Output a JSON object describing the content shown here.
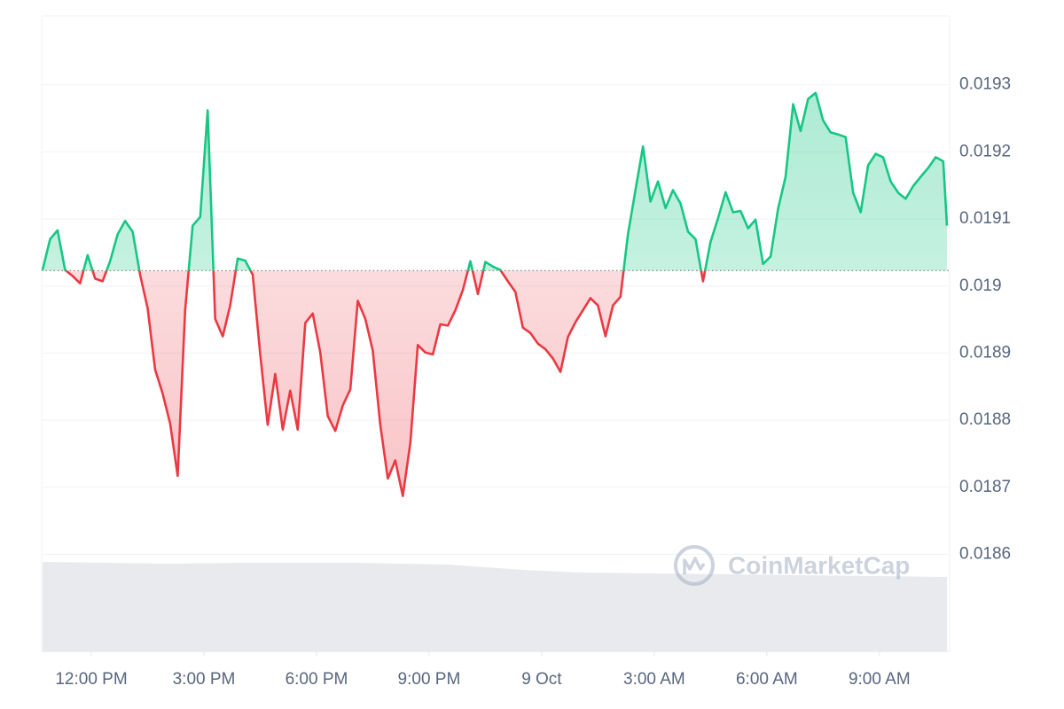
{
  "chart_data": {
    "type": "line",
    "up_color": "#16c784",
    "down_color": "#ea3943",
    "baseline": 0.019023,
    "xlim": [
      -1.3,
      22.9
    ],
    "ylim": [
      0.01845,
      0.0194
    ],
    "grid": true,
    "yticks": [
      0.0186,
      0.0187,
      0.0188,
      0.0189,
      0.019,
      0.0191,
      0.0192,
      0.0193
    ],
    "xticks": [
      {
        "value": 0,
        "label": "12:00 PM"
      },
      {
        "value": 3,
        "label": "3:00 PM"
      },
      {
        "value": 6,
        "label": "6:00 PM"
      },
      {
        "value": 9,
        "label": "9:00 PM"
      },
      {
        "value": 12,
        "label": "9 Oct"
      },
      {
        "value": 15,
        "label": "3:00 AM"
      },
      {
        "value": 18,
        "label": "6:00 AM"
      },
      {
        "value": 21,
        "label": "9:00 AM"
      }
    ],
    "x": [
      -1.3,
      -1.1,
      -0.9,
      -0.7,
      -0.5,
      -0.3,
      -0.1,
      0.1,
      0.3,
      0.5,
      0.7,
      0.9,
      1.1,
      1.3,
      1.5,
      1.7,
      1.9,
      2.1,
      2.3,
      2.5,
      2.7,
      2.9,
      3.1,
      3.3,
      3.5,
      3.7,
      3.9,
      4.1,
      4.3,
      4.5,
      4.7,
      4.9,
      5.1,
      5.3,
      5.5,
      5.7,
      5.9,
      6.1,
      6.3,
      6.5,
      6.7,
      6.9,
      7.1,
      7.3,
      7.5,
      7.7,
      7.9,
      8.1,
      8.3,
      8.5,
      8.7,
      8.9,
      9.1,
      9.3,
      9.5,
      9.7,
      9.9,
      10.1,
      10.3,
      10.5,
      10.7,
      10.9,
      11.1,
      11.3,
      11.5,
      11.7,
      11.9,
      12.1,
      12.3,
      12.5,
      12.7,
      12.9,
      13.1,
      13.3,
      13.5,
      13.7,
      13.9,
      14.1,
      14.3,
      14.5,
      14.7,
      14.9,
      15.1,
      15.3,
      15.5,
      15.7,
      15.9,
      16.1,
      16.3,
      16.5,
      16.7,
      16.9,
      17.1,
      17.3,
      17.5,
      17.7,
      17.9,
      18.1,
      18.3,
      18.5,
      18.7,
      18.9,
      19.1,
      19.3,
      19.5,
      19.7,
      19.9,
      20.1,
      20.3,
      20.5,
      20.7,
      20.9,
      21.1,
      21.3,
      21.5,
      21.7,
      21.9,
      22.1,
      22.3,
      22.5,
      22.7,
      22.8
    ],
    "values": [
      0.019024,
      0.01907,
      0.019083,
      0.019024,
      0.019015,
      0.019004,
      0.019046,
      0.019011,
      0.019007,
      0.019037,
      0.019077,
      0.019097,
      0.019081,
      0.019017,
      0.018967,
      0.018875,
      0.01884,
      0.018795,
      0.018717,
      0.018964,
      0.01909,
      0.019103,
      0.019262,
      0.018951,
      0.018925,
      0.018971,
      0.019041,
      0.019038,
      0.019017,
      0.018898,
      0.018793,
      0.018869,
      0.018786,
      0.018844,
      0.018786,
      0.018945,
      0.018959,
      0.018901,
      0.018806,
      0.018784,
      0.018822,
      0.018846,
      0.018978,
      0.018951,
      0.018904,
      0.018793,
      0.018713,
      0.01874,
      0.018687,
      0.018766,
      0.018912,
      0.018901,
      0.018898,
      0.018943,
      0.018941,
      0.018964,
      0.018994,
      0.019037,
      0.018988,
      0.019036,
      0.019029,
      0.019024,
      0.019007,
      0.018991,
      0.018938,
      0.01893,
      0.018914,
      0.018906,
      0.018892,
      0.018872,
      0.018924,
      0.018946,
      0.018964,
      0.018982,
      0.018971,
      0.018925,
      0.018971,
      0.018984,
      0.019077,
      0.019143,
      0.019208,
      0.019126,
      0.019156,
      0.019116,
      0.019143,
      0.019123,
      0.019081,
      0.01907,
      0.019007,
      0.019066,
      0.019101,
      0.01914,
      0.01911,
      0.019112,
      0.019086,
      0.019099,
      0.019033,
      0.019044,
      0.019115,
      0.019163,
      0.019271,
      0.019231,
      0.019279,
      0.019288,
      0.019247,
      0.019229,
      0.019226,
      0.019222,
      0.019139,
      0.01911,
      0.01918,
      0.019197,
      0.019192,
      0.019156,
      0.019139,
      0.01913,
      0.019149,
      0.019163,
      0.019176,
      0.019192,
      0.019186,
      0.01909
    ],
    "volume": {
      "color": "#e8eaee",
      "x": [
        -1.3,
        2,
        4,
        7,
        9.5,
        11.5,
        13,
        22.8
      ],
      "values": [
        101,
        99,
        100,
        100,
        98,
        92,
        89,
        84
      ]
    },
    "watermark": "CoinMarketCap"
  }
}
